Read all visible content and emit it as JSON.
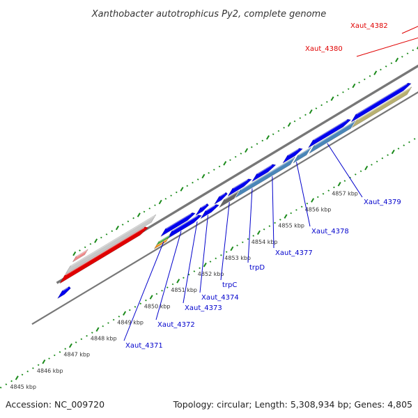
{
  "title": "Xanthobacter autotrophicus Py2, complete genome",
  "footer": {
    "accession": "Accession: NC_009720",
    "summary": "Topology: circular; Length: 5,308,934 bp; Genes: 4,805"
  },
  "ticks": [
    "4845 kbp",
    "4846 kbp",
    "4847 kbp",
    "4848 kbp",
    "4849 kbp",
    "4850 kbp",
    "4851 kbp",
    "4852 kbp",
    "4853 kbp",
    "4854 kbp",
    "4855 kbp",
    "4856 kbp",
    "4857 kbp"
  ],
  "genes": [
    {
      "name": "Xaut_4371",
      "color": "#0000cc"
    },
    {
      "name": "Xaut_4372",
      "color": "#0000cc"
    },
    {
      "name": "Xaut_4373",
      "color": "#0000cc"
    },
    {
      "name": "Xaut_4374",
      "color": "#0000cc"
    },
    {
      "name": "trpC",
      "color": "#0000cc"
    },
    {
      "name": "trpD",
      "color": "#0000cc"
    },
    {
      "name": "Xaut_4377",
      "color": "#0000cc"
    },
    {
      "name": "Xaut_4378",
      "color": "#0000cc"
    },
    {
      "name": "Xaut_4379",
      "color": "#0000cc"
    },
    {
      "name": "Xaut_4380",
      "color": "#e00000"
    },
    {
      "name": "Xaut_4382",
      "color": "#e00000"
    }
  ],
  "colors": {
    "cds": "#0000ee",
    "rna": "#e00000",
    "gc_skew": "#1a8a1a",
    "backbone": "#777777",
    "trp_feature": "#4a86b8",
    "olive_feature": "#b8b070",
    "cyan_feature": "#20c8c8",
    "grey_feature": "#666666",
    "light_grey_feature": "#c8c8c8",
    "pink_feature": "#f08a8a",
    "green_feature": "#40b040",
    "orange_feature": "#f09010"
  }
}
